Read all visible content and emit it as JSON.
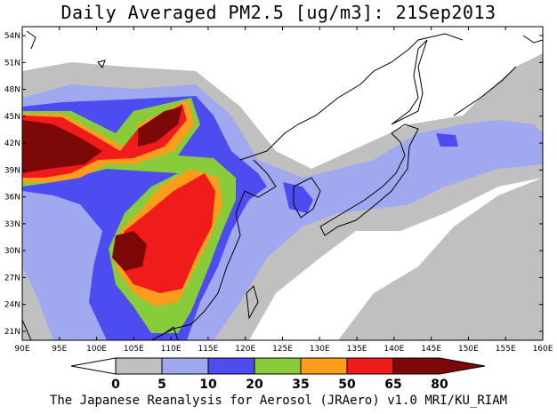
{
  "title": "Daily Averaged PM2.5 [ug/m3]: 21Sep2013",
  "footer": "The Japanese Reanalysis for Aerosol (JRAero) v1.0 MRI/KU_RIAM",
  "map": {
    "lon_range": [
      90,
      160
    ],
    "lat_range": [
      20,
      55
    ],
    "lon_ticks": [
      "90E",
      "95E",
      "100E",
      "105E",
      "110E",
      "115E",
      "120E",
      "125E",
      "130E",
      "135E",
      "140E",
      "145E",
      "150E",
      "155E",
      "160E"
    ],
    "lat_ticks": [
      "54N",
      "51N",
      "48N",
      "45N",
      "42N",
      "39N",
      "36N",
      "33N",
      "30N",
      "27N",
      "24N",
      "21N"
    ]
  },
  "colorbar": {
    "labels": [
      "0",
      "5",
      "10",
      "20",
      "35",
      "50",
      "65",
      "80"
    ],
    "colors": [
      "#ffffff",
      "#c0c0c0",
      "#a0a8f0",
      "#4c4cf0",
      "#88cc3c",
      "#ff9c1c",
      "#f01c1c",
      "#7c0808"
    ]
  }
}
